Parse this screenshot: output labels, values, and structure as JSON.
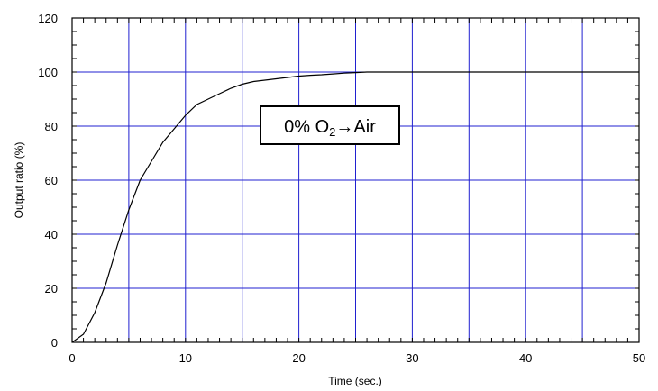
{
  "chart_data": {
    "type": "line",
    "title": "",
    "xlabel": "Time (sec.)",
    "ylabel": "Output ratio (%)",
    "xlim": [
      0,
      50
    ],
    "ylim": [
      0,
      120
    ],
    "x_ticks": [
      0,
      10,
      20,
      30,
      40,
      50
    ],
    "y_ticks": [
      0,
      20,
      40,
      60,
      80,
      100,
      120
    ],
    "grid": true,
    "grid_color": "#2020d0",
    "line_color": "#000000",
    "series": [
      {
        "x": [
          0,
          1,
          2,
          3,
          4,
          5,
          6,
          7,
          8,
          9,
          10,
          11,
          12,
          13,
          14,
          15,
          16,
          17,
          18,
          19,
          20,
          21,
          22,
          23,
          24,
          25,
          26,
          28,
          30,
          35,
          40,
          45,
          50
        ],
        "values": [
          0,
          3,
          11,
          22,
          36,
          49,
          60,
          67,
          74,
          79,
          84,
          88,
          90,
          92,
          94,
          95.5,
          96.5,
          97,
          97.5,
          98,
          98.5,
          98.8,
          99,
          99.3,
          99.6,
          99.8,
          100,
          100,
          100,
          100,
          100,
          100,
          100
        ]
      }
    ],
    "annotation": {
      "prefix": "0% O",
      "subscript": "2",
      "suffix": "→Air"
    }
  }
}
